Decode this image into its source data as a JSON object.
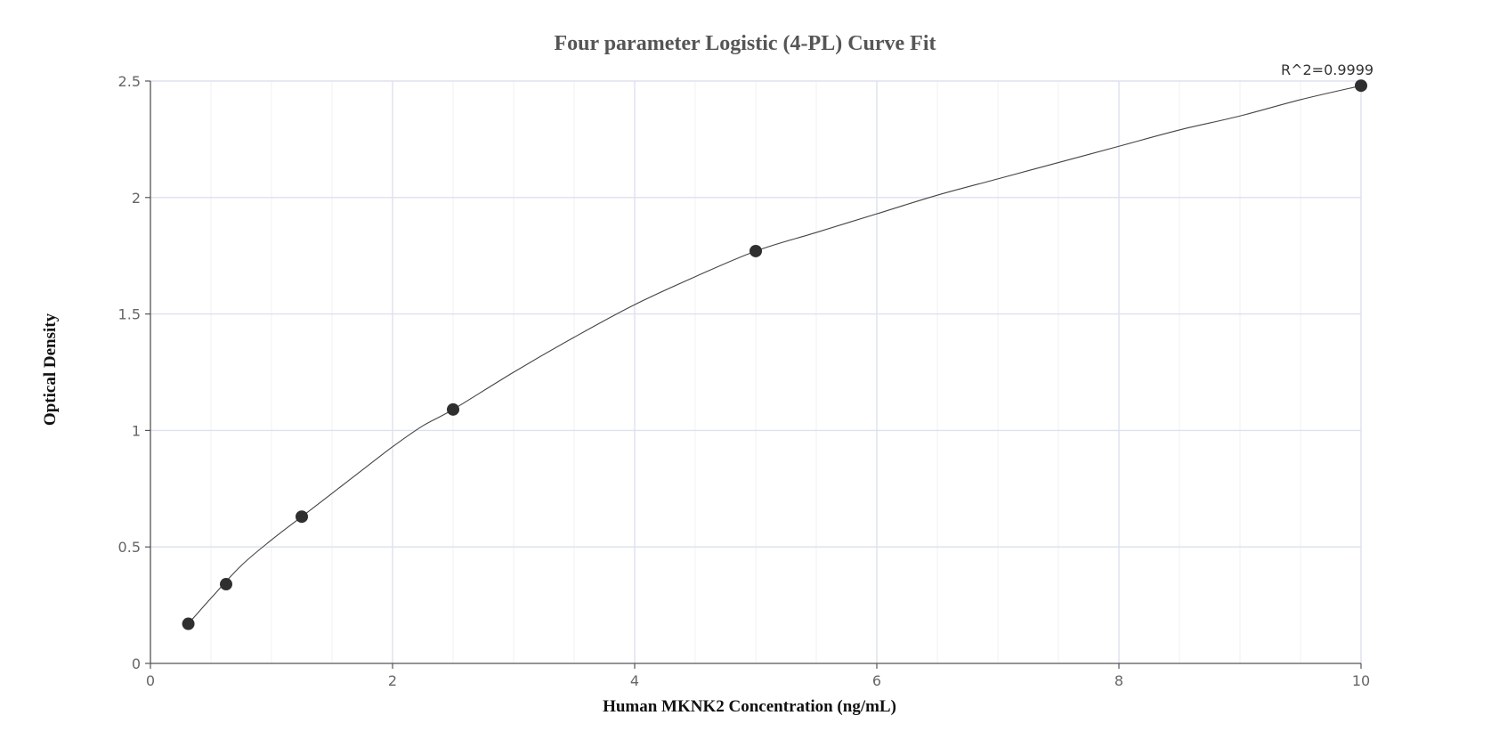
{
  "chart_data": {
    "type": "scatter",
    "title": "Four parameter Logistic (4-PL) Curve Fit",
    "xlabel": "Human MKNK2 Concentration (ng/mL)",
    "ylabel": "Optical Density",
    "xlim": [
      0,
      10
    ],
    "ylim": [
      0,
      2.5
    ],
    "x_ticks": [
      0,
      2,
      4,
      6,
      8,
      10
    ],
    "y_ticks": [
      0,
      0.5,
      1,
      1.5,
      2,
      2.5
    ],
    "x_tick_labels": [
      "0",
      "2",
      "4",
      "6",
      "8",
      "10"
    ],
    "y_tick_labels": [
      "0",
      "0.5",
      "1",
      "1.5",
      "2",
      "2.5"
    ],
    "grid": true,
    "series": [
      {
        "points": [
          {
            "x": 0.313,
            "y": 0.17
          },
          {
            "x": 0.625,
            "y": 0.34
          },
          {
            "x": 1.25,
            "y": 0.63
          },
          {
            "x": 2.5,
            "y": 1.09
          },
          {
            "x": 5,
            "y": 1.77
          },
          {
            "x": 10,
            "y": 2.48
          }
        ],
        "color": "#2f2f2f"
      }
    ],
    "fit_curve": {
      "model": "4-PL",
      "x": [
        0.313,
        0.5,
        0.75,
        1,
        1.25,
        1.5,
        1.75,
        2,
        2.25,
        2.5,
        3,
        3.5,
        4,
        4.5,
        5,
        5.5,
        6,
        6.5,
        7,
        7.5,
        8,
        8.5,
        9,
        9.5,
        10
      ],
      "y": [
        0.17,
        0.28,
        0.42,
        0.53,
        0.63,
        0.73,
        0.83,
        0.93,
        1.02,
        1.09,
        1.25,
        1.4,
        1.54,
        1.66,
        1.77,
        1.85,
        1.93,
        2.01,
        2.08,
        2.15,
        2.22,
        2.29,
        2.35,
        2.42,
        2.48
      ],
      "color": "#444444"
    },
    "annotation": "R^2=0.9999"
  }
}
